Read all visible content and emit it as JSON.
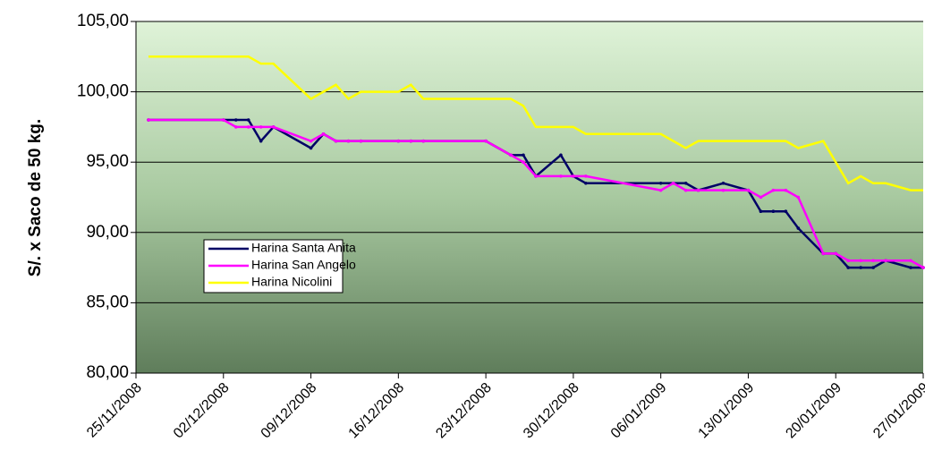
{
  "chart_data": {
    "type": "line",
    "y_label": "S/. x Saco de 50 kg.",
    "x": [
      "26/11/2008",
      "02/12/2008",
      "03/12/2008",
      "04/12/2008",
      "05/12/2008",
      "06/12/2008",
      "09/12/2008",
      "10/12/2008",
      "11/12/2008",
      "12/12/2008",
      "13/12/2008",
      "16/12/2008",
      "17/12/2008",
      "18/12/2008",
      "23/12/2008",
      "25/12/2008",
      "26/12/2008",
      "27/12/2008",
      "29/12/2008",
      "30/12/2008",
      "31/12/2008",
      "06/01/2009",
      "07/01/2009",
      "08/01/2009",
      "09/01/2009",
      "11/01/2009",
      "13/01/2009",
      "14/01/2009",
      "15/01/2009",
      "16/01/2009",
      "17/01/2009",
      "19/01/2009",
      "20/01/2009",
      "21/01/2009",
      "22/01/2009",
      "23/01/2009",
      "24/01/2009",
      "26/01/2009",
      "27/01/2009"
    ],
    "series": [
      {
        "name": "Harina Santa Anita",
        "color": "#000066",
        "markers": true,
        "values": [
          98,
          98,
          98,
          98,
          96.5,
          97.5,
          96,
          97,
          96.5,
          96.5,
          96.5,
          96.5,
          96.5,
          96.5,
          96.5,
          95.5,
          95.5,
          94,
          95.5,
          94,
          93.5,
          93.5,
          93.5,
          93.5,
          93,
          93.5,
          93,
          91.5,
          91.5,
          91.5,
          90.3,
          88.5,
          88.5,
          87.5,
          87.5,
          87.5,
          88,
          87.5,
          87.5
        ]
      },
      {
        "name": "Harina San Angelo",
        "color": "#ff00ff",
        "markers": true,
        "values": [
          98,
          98,
          97.5,
          97.5,
          97.5,
          97.5,
          96.5,
          97,
          96.5,
          96.5,
          96.5,
          96.5,
          96.5,
          96.5,
          96.5,
          95.5,
          95,
          94,
          94,
          94,
          94,
          93,
          93.5,
          93,
          93,
          93,
          93,
          92.5,
          93,
          93,
          92.5,
          88.5,
          88.5,
          88,
          88,
          88,
          88,
          88,
          87.5
        ]
      },
      {
        "name": "Harina Nicolini",
        "color": "#ffff00",
        "markers": false,
        "values": [
          102.5,
          102.5,
          102.5,
          102.5,
          102,
          102,
          99.5,
          100,
          100.5,
          99.5,
          100,
          100,
          100.5,
          99.5,
          99.5,
          99.5,
          99,
          97.5,
          97.5,
          97.5,
          97,
          97,
          96.5,
          96,
          96.5,
          96.5,
          96.5,
          96.5,
          96.5,
          96.5,
          96,
          96.5,
          95,
          93.5,
          94,
          93.5,
          93.5,
          93,
          93
        ]
      }
    ],
    "xlim": [
      "25/11/2008",
      "27/01/2009"
    ],
    "xticks": [
      "25/11/2008",
      "02/12/2008",
      "09/12/2008",
      "16/12/2008",
      "23/12/2008",
      "30/12/2008",
      "06/01/2009",
      "13/01/2009",
      "20/01/2009",
      "27/01/2009"
    ],
    "ylim": [
      80,
      105
    ],
    "yticks": [
      {
        "value": 80,
        "label": "80,00"
      },
      {
        "value": 85,
        "label": "85,00"
      },
      {
        "value": 90,
        "label": "90,00"
      },
      {
        "value": 95,
        "label": "95,00"
      },
      {
        "value": 100,
        "label": "100,00"
      },
      {
        "value": 105,
        "label": "105,00"
      }
    ],
    "grid": true,
    "legend": "left"
  }
}
